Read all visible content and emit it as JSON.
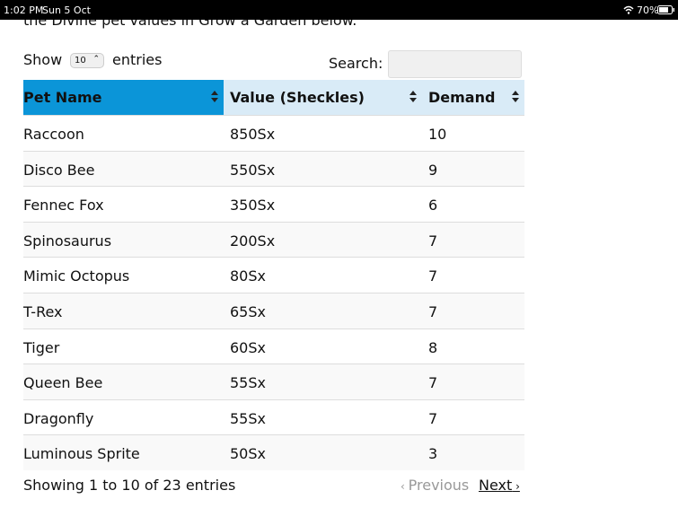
{
  "status_bar": {
    "time": "1:02 PM",
    "date": "Sun 5 Oct",
    "battery": "70%"
  },
  "intro_text": "the Divine pet values in Grow a Garden below.",
  "controls": {
    "show_label": "Show",
    "page_length": "10",
    "entries_label": "entries",
    "search_label": "Search:"
  },
  "table": {
    "columns": [
      "Pet Name",
      "Value (Sheckles)",
      "Demand"
    ],
    "rows": [
      [
        "Raccoon",
        "850Sx",
        "10"
      ],
      [
        "Disco Bee",
        "550Sx",
        "9"
      ],
      [
        "Fennec Fox",
        "350Sx",
        "6"
      ],
      [
        "Spinosaurus",
        "200Sx",
        "7"
      ],
      [
        "Mimic Octopus",
        "80Sx",
        "7"
      ],
      [
        "T-Rex",
        "65Sx",
        "7"
      ],
      [
        "Tiger",
        "60Sx",
        "8"
      ],
      [
        "Queen Bee",
        "55Sx",
        "7"
      ],
      [
        "Dragonfly",
        "55Sx",
        "7"
      ],
      [
        "Luminous Sprite",
        "50Sx",
        "3"
      ]
    ]
  },
  "footer": {
    "info": "Showing 1 to 10 of 23 entries",
    "previous": "Previous",
    "next": "Next"
  }
}
